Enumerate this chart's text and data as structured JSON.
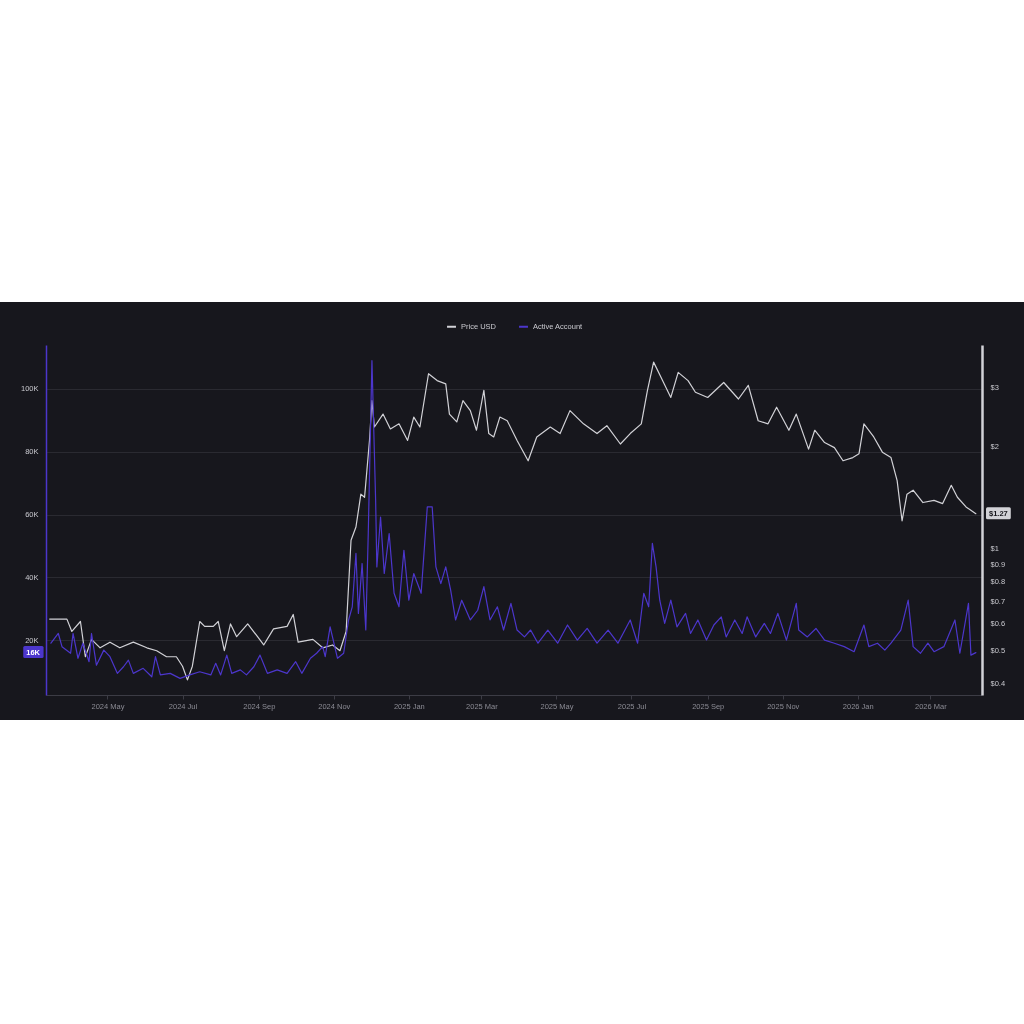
{
  "chart_data": {
    "type": "line",
    "xlim": [
      "2024-03-12",
      "2026-04-12"
    ],
    "xticks": [
      {
        "value": "2024-05",
        "label": "2024 May"
      },
      {
        "value": "2024-07",
        "label": "2024 Jul"
      },
      {
        "value": "2024-09",
        "label": "2024 Sep"
      },
      {
        "value": "2024-11",
        "label": "2024 Nov"
      },
      {
        "value": "2025-01",
        "label": "2025 Jan"
      },
      {
        "value": "2025-03",
        "label": "2025 Mar"
      },
      {
        "value": "2025-05",
        "label": "2025 May"
      },
      {
        "value": "2025-07",
        "label": "2025 Jul"
      },
      {
        "value": "2025-09",
        "label": "2025 Sep"
      },
      {
        "value": "2025-11",
        "label": "2025 Nov"
      },
      {
        "value": "2026-01",
        "label": "2026 Jan"
      },
      {
        "value": "2026-03",
        "label": "2026 Mar"
      }
    ],
    "ylim": [
      2500,
      114000
    ],
    "yticks": [
      {
        "value": 20000,
        "label": "20K"
      },
      {
        "value": 40000,
        "label": "40K"
      },
      {
        "value": 60000,
        "label": "60K"
      },
      {
        "value": 80000,
        "label": "80K"
      },
      {
        "value": 100000,
        "label": "100K"
      }
    ],
    "y2lim": [
      0.37,
      4
    ],
    "y2ticks": [
      {
        "value": 0.4,
        "label": "$0.4"
      },
      {
        "value": 0.5,
        "label": "$0.5"
      },
      {
        "value": 0.6,
        "label": "$0.6"
      },
      {
        "value": 0.7,
        "label": "$0.7"
      },
      {
        "value": 0.8,
        "label": "$0.8"
      },
      {
        "value": 0.9,
        "label": "$0.9"
      },
      {
        "value": 1,
        "label": "$1"
      },
      {
        "value": 2,
        "label": "$2"
      },
      {
        "value": 3,
        "label": "$3"
      }
    ],
    "log": "y2",
    "grid": "y",
    "legend": "top",
    "annotations": [
      {
        "text": "16K",
        "y": 16000
      }
    ],
    "series": [
      {
        "name": "Price USD",
        "color": "#d2d2d7",
        "axis": "y2",
        "x": [
          "2024-03-15",
          "2024-03-29",
          "2024-04-02",
          "2024-04-09",
          "2024-04-13",
          "2024-04-18",
          "2024-04-25",
          "2024-05-03",
          "2024-05-11",
          "2024-05-22",
          "2024-06-02",
          "2024-06-10",
          "2024-06-18",
          "2024-06-26",
          "2024-07-01",
          "2024-07-05",
          "2024-07-09",
          "2024-07-15",
          "2024-07-19",
          "2024-07-26",
          "2024-07-30",
          "2024-08-04",
          "2024-08-09",
          "2024-08-14",
          "2024-08-23",
          "2024-08-31",
          "2024-09-05",
          "2024-09-13",
          "2024-09-24",
          "2024-09-29",
          "2024-10-03",
          "2024-10-15",
          "2024-10-23",
          "2024-10-31",
          "2024-11-06",
          "2024-11-11",
          "2024-11-15",
          "2024-11-19",
          "2024-11-23",
          "2024-11-26",
          "2024-11-30",
          "2024-12-02",
          "2024-12-04",
          "2024-12-11",
          "2024-12-17",
          "2024-12-24",
          "2024-12-31",
          "2025-01-05",
          "2025-01-10",
          "2025-01-17",
          "2025-01-24",
          "2025-01-31",
          "2025-02-03",
          "2025-02-09",
          "2025-02-14",
          "2025-02-20",
          "2025-02-25",
          "2025-03-03",
          "2025-03-07",
          "2025-03-11",
          "2025-03-16",
          "2025-03-22",
          "2025-03-30",
          "2025-04-08",
          "2025-04-15",
          "2025-04-26",
          "2025-05-04",
          "2025-05-12",
          "2025-05-23",
          "2025-06-03",
          "2025-06-11",
          "2025-06-22",
          "2025-06-30",
          "2025-07-09",
          "2025-07-14",
          "2025-07-19",
          "2025-07-25",
          "2025-08-02",
          "2025-08-08",
          "2025-08-16",
          "2025-08-22",
          "2025-09-01",
          "2025-09-14",
          "2025-09-26",
          "2025-10-04",
          "2025-10-12",
          "2025-10-20",
          "2025-10-27",
          "2025-11-06",
          "2025-11-12",
          "2025-11-22",
          "2025-11-27",
          "2025-12-05",
          "2025-12-13",
          "2025-12-20",
          "2025-12-28",
          "2026-01-02",
          "2026-01-06",
          "2026-01-14",
          "2026-01-21",
          "2026-01-28",
          "2026-02-02",
          "2026-02-06",
          "2026-02-10",
          "2026-02-15",
          "2026-02-23",
          "2026-03-04",
          "2026-03-11",
          "2026-03-18",
          "2026-03-23",
          "2026-03-30",
          "2026-04-07"
        ],
        "values": [
          0.62,
          0.62,
          0.57,
          0.61,
          0.48,
          0.54,
          0.51,
          0.53,
          0.51,
          0.53,
          0.51,
          0.5,
          0.48,
          0.48,
          0.45,
          0.41,
          0.45,
          0.61,
          0.59,
          0.59,
          0.61,
          0.5,
          0.6,
          0.55,
          0.6,
          0.55,
          0.52,
          0.58,
          0.59,
          0.64,
          0.53,
          0.54,
          0.51,
          0.52,
          0.5,
          0.57,
          1.06,
          1.16,
          1.45,
          1.42,
          2.09,
          2.74,
          2.29,
          2.5,
          2.26,
          2.34,
          2.09,
          2.45,
          2.29,
          3.29,
          3.14,
          3.07,
          2.5,
          2.37,
          2.74,
          2.56,
          2.24,
          2.94,
          2.19,
          2.14,
          2.45,
          2.39,
          2.09,
          1.82,
          2.14,
          2.29,
          2.19,
          2.56,
          2.34,
          2.19,
          2.31,
          2.04,
          2.19,
          2.34,
          2.94,
          3.56,
          3.21,
          2.8,
          3.32,
          3.14,
          2.9,
          2.8,
          3.1,
          2.77,
          3.04,
          2.39,
          2.34,
          2.62,
          2.24,
          2.5,
          1.97,
          2.24,
          2.06,
          1.99,
          1.82,
          1.86,
          1.91,
          2.34,
          2.14,
          1.93,
          1.86,
          1.59,
          1.21,
          1.45,
          1.49,
          1.37,
          1.39,
          1.36,
          1.54,
          1.42,
          1.33,
          1.27
        ],
        "value_labels": [
          null,
          null,
          null,
          null,
          null,
          null,
          null,
          null,
          null,
          null,
          null,
          null,
          null,
          null,
          null,
          null,
          null,
          null,
          null,
          null,
          null,
          null,
          null,
          null,
          null,
          null,
          null,
          null,
          null,
          null,
          null,
          null,
          null,
          null,
          null,
          null,
          null,
          null,
          null,
          null,
          null,
          null,
          null,
          null,
          null,
          null,
          null,
          null,
          null,
          null,
          null,
          null,
          null,
          null,
          null,
          null,
          null,
          null,
          null,
          null,
          null,
          null,
          null,
          null,
          null,
          null,
          null,
          null,
          null,
          null,
          null,
          null,
          null,
          null,
          null,
          null,
          null,
          null,
          null,
          null,
          null,
          null,
          null,
          null,
          null,
          null,
          null,
          null,
          null,
          null,
          null,
          null,
          null,
          null,
          null,
          null,
          null,
          null,
          null,
          null,
          null,
          null,
          null,
          null,
          null,
          null,
          null,
          null,
          null,
          null,
          null,
          "$1.27"
        ]
      },
      {
        "name": "Active Account",
        "color": "#4c36cc",
        "x": [
          "2024-03-16",
          "2024-03-22",
          "2024-03-25",
          "2024-04-01",
          "2024-04-03",
          "2024-04-07",
          "2024-04-11",
          "2024-04-16",
          "2024-04-18",
          "2024-04-22",
          "2024-04-28",
          "2024-05-03",
          "2024-05-09",
          "2024-05-14",
          "2024-05-18",
          "2024-05-22",
          "2024-05-30",
          "2024-06-06",
          "2024-06-09",
          "2024-06-13",
          "2024-06-21",
          "2024-06-29",
          "2024-07-07",
          "2024-07-15",
          "2024-07-24",
          "2024-07-28",
          "2024-08-01",
          "2024-08-06",
          "2024-08-10",
          "2024-08-17",
          "2024-08-22",
          "2024-08-28",
          "2024-09-02",
          "2024-09-08",
          "2024-09-16",
          "2024-09-24",
          "2024-10-01",
          "2024-10-06",
          "2024-10-13",
          "2024-10-18",
          "2024-10-23",
          "2024-10-25",
          "2024-10-29",
          "2024-11-04",
          "2024-11-09",
          "2024-11-13",
          "2024-11-16",
          "2024-11-19",
          "2024-11-21",
          "2024-11-24",
          "2024-11-27",
          "2024-11-29",
          "2024-12-02",
          "2024-12-05",
          "2024-12-06",
          "2024-12-09",
          "2024-12-12",
          "2024-12-16",
          "2024-12-20",
          "2024-12-24",
          "2024-12-28",
          "2025-01-01",
          "2025-01-05",
          "2025-01-11",
          "2025-01-16",
          "2025-01-20",
          "2025-01-23",
          "2025-01-27",
          "2025-01-31",
          "2025-02-04",
          "2025-02-08",
          "2025-02-13",
          "2025-02-20",
          "2025-02-26",
          "2025-03-03",
          "2025-03-08",
          "2025-03-14",
          "2025-03-19",
          "2025-03-25",
          "2025-03-30",
          "2025-04-05",
          "2025-04-10",
          "2025-04-16",
          "2025-04-24",
          "2025-05-02",
          "2025-05-10",
          "2025-05-18",
          "2025-05-26",
          "2025-06-03",
          "2025-06-12",
          "2025-06-20",
          "2025-06-30",
          "2025-07-06",
          "2025-07-11",
          "2025-07-15",
          "2025-07-18",
          "2025-07-21",
          "2025-07-24",
          "2025-07-28",
          "2025-08-02",
          "2025-08-07",
          "2025-08-14",
          "2025-08-18",
          "2025-08-24",
          "2025-08-31",
          "2025-09-06",
          "2025-09-12",
          "2025-09-16",
          "2025-09-23",
          "2025-09-29",
          "2025-10-03",
          "2025-10-10",
          "2025-10-17",
          "2025-10-22",
          "2025-10-28",
          "2025-11-04",
          "2025-11-12",
          "2025-11-14",
          "2025-11-21",
          "2025-11-28",
          "2025-12-05",
          "2025-12-13",
          "2025-12-21",
          "2025-12-29",
          "2026-01-06",
          "2026-01-10",
          "2026-01-17",
          "2026-01-23",
          "2026-01-28",
          "2026-02-05",
          "2026-02-11",
          "2026-02-15",
          "2026-02-21",
          "2026-02-27",
          "2026-03-04",
          "2026-03-12",
          "2026-03-21",
          "2026-03-25",
          "2026-04-01",
          "2026-04-03",
          "2026-04-07"
        ],
        "values": [
          19000,
          22100,
          17900,
          15800,
          22100,
          14200,
          19000,
          13100,
          22100,
          12000,
          16800,
          14700,
          9400,
          11500,
          13600,
          9400,
          11000,
          8300,
          14700,
          8900,
          9400,
          7800,
          8900,
          9900,
          8900,
          12600,
          8900,
          15200,
          9400,
          10500,
          8900,
          11500,
          15200,
          9400,
          10500,
          9400,
          13100,
          9400,
          14200,
          15800,
          17900,
          14700,
          24200,
          14200,
          15800,
          26400,
          30600,
          47600,
          28500,
          44400,
          23200,
          53900,
          109000,
          64500,
          43300,
          59200,
          41200,
          53900,
          34900,
          30600,
          48600,
          32700,
          41200,
          34900,
          62400,
          62400,
          43300,
          38000,
          43300,
          35900,
          26400,
          32700,
          26400,
          29500,
          37000,
          26400,
          30600,
          23200,
          31700,
          23200,
          21000,
          23200,
          19000,
          23200,
          19000,
          24800,
          20000,
          23700,
          19000,
          23200,
          19000,
          26400,
          19000,
          34900,
          30600,
          50800,
          43300,
          32700,
          25300,
          32700,
          24200,
          28500,
          22100,
          26400,
          20000,
          24800,
          27400,
          21000,
          26400,
          22100,
          27400,
          21000,
          25300,
          22100,
          28500,
          20000,
          31700,
          23200,
          21000,
          23700,
          20000,
          19000,
          17900,
          16300,
          24800,
          17900,
          19000,
          16800,
          19000,
          23200,
          32700,
          17900,
          15800,
          19000,
          16300,
          17900,
          26400,
          15800,
          31700,
          15200,
          16000
        ]
      }
    ]
  }
}
